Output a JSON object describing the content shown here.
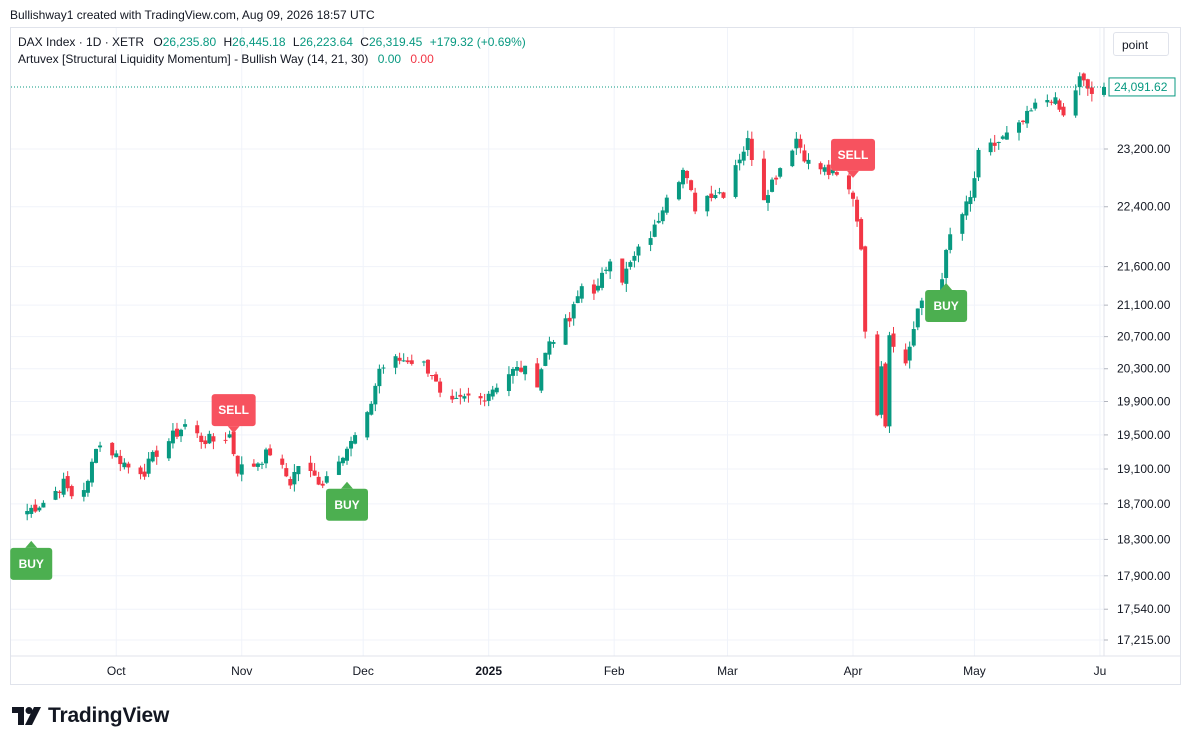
{
  "header": {
    "credit": "Bullishway1 created with TradingView.com, Aug 09, 2026 18:57 UTC"
  },
  "legend": {
    "symbol": "DAX Index · 1D · XETR",
    "o_label": "O",
    "o_value": "26,235.80",
    "h_label": "H",
    "h_value": "26,445.18",
    "l_label": "L",
    "l_value": "26,223.64",
    "c_label": "C",
    "c_value": "26,319.45",
    "change": "+179.32 (+0.69%)",
    "indicator": "Artuvex [Structural Liquidity Momentum] - Bullish Way (14, 21, 30)",
    "ind_val1": "0.00",
    "ind_val2": "0.00"
  },
  "unit_button": "point",
  "footer": {
    "brand": "TradingView"
  },
  "colors": {
    "up": "#089981",
    "down": "#f23645",
    "buy": "#4caf50",
    "sell": "#f7525f",
    "grid": "#f0f3fa"
  },
  "chart_data": {
    "type": "candlestick",
    "price_scale": "log",
    "ylim": [
      16950,
      24900
    ],
    "y_ticks": [
      "17,215.00",
      "17,540.00",
      "17,900.00",
      "18,300.00",
      "18,700.00",
      "19,100.00",
      "19,500.00",
      "19,900.00",
      "20,300.00",
      "20,700.00",
      "21,100.00",
      "21,600.00",
      "22,400.00",
      "23,200.00"
    ],
    "last_price_label": "24,091.62",
    "x_labels": [
      {
        "label": "Oct",
        "date": "2024-10-01"
      },
      {
        "label": "Nov",
        "date": "2024-11-01"
      },
      {
        "label": "Dec",
        "date": "2024-12-01"
      },
      {
        "label": "2025",
        "date": "2025-01-01",
        "bold": true
      },
      {
        "label": "Feb",
        "date": "2025-02-01"
      },
      {
        "label": "Mar",
        "date": "2025-03-01"
      },
      {
        "label": "Apr",
        "date": "2025-04-01"
      },
      {
        "label": "May",
        "date": "2025-05-01"
      },
      {
        "label": "Ju",
        "date": "2025-06-01"
      }
    ],
    "anchors": [
      [
        "2024-09-09",
        18620
      ],
      [
        "2024-09-13",
        18720
      ],
      [
        "2024-09-18",
        18930
      ],
      [
        "2024-09-20",
        18800
      ],
      [
        "2024-09-24",
        18920
      ],
      [
        "2024-09-26",
        19400
      ],
      [
        "2024-09-30",
        19300
      ],
      [
        "2024-10-04",
        19120
      ],
      [
        "2024-10-08",
        19080
      ],
      [
        "2024-10-11",
        19300
      ],
      [
        "2024-10-15",
        19480
      ],
      [
        "2024-10-18",
        19620
      ],
      [
        "2024-10-22",
        19450
      ],
      [
        "2024-10-25",
        19430
      ],
      [
        "2024-10-29",
        19500
      ],
      [
        "2024-10-31",
        19100
      ],
      [
        "2024-11-04",
        19150
      ],
      [
        "2024-11-08",
        19300
      ],
      [
        "2024-11-13",
        18950
      ],
      [
        "2024-11-15",
        19150
      ],
      [
        "2024-11-19",
        19000
      ],
      [
        "2024-11-21",
        18950
      ],
      [
        "2024-11-25",
        19250
      ],
      [
        "2024-11-28",
        19400
      ],
      [
        "2024-12-02",
        19700
      ],
      [
        "2024-12-05",
        20300
      ],
      [
        "2024-12-09",
        20400
      ],
      [
        "2024-12-12",
        20420
      ],
      [
        "2024-12-16",
        20350
      ],
      [
        "2024-12-18",
        20250
      ],
      [
        "2024-12-20",
        19950
      ],
      [
        "2024-12-23",
        19850
      ],
      [
        "2024-12-27",
        19950
      ],
      [
        "2024-12-30",
        19930
      ],
      [
        "2025-01-06",
        20250
      ],
      [
        "2025-01-09",
        20300
      ],
      [
        "2025-01-13",
        20150
      ],
      [
        "2025-01-16",
        20650
      ],
      [
        "2025-01-21",
        20900
      ],
      [
        "2025-01-24",
        21350
      ],
      [
        "2025-01-28",
        21300
      ],
      [
        "2025-01-31",
        21750
      ],
      [
        "2025-02-03",
        21450
      ],
      [
        "2025-02-07",
        21800
      ],
      [
        "2025-02-11",
        22100
      ],
      [
        "2025-02-14",
        22600
      ],
      [
        "2025-02-18",
        22900
      ],
      [
        "2025-02-21",
        22400
      ],
      [
        "2025-02-25",
        22600
      ],
      [
        "2025-02-28",
        22600
      ],
      [
        "2025-03-03",
        23000
      ],
      [
        "2025-03-06",
        23300
      ],
      [
        "2025-03-10",
        22550
      ],
      [
        "2025-03-14",
        22950
      ],
      [
        "2025-03-18",
        23350
      ],
      [
        "2025-03-21",
        23000
      ],
      [
        "2025-03-25",
        22900
      ],
      [
        "2025-03-28",
        22800
      ],
      [
        "2025-04-01",
        22550
      ],
      [
        "2025-04-03",
        21900
      ],
      [
        "2025-04-04",
        20700
      ],
      [
        "2025-04-07",
        19800
      ],
      [
        "2025-04-08",
        20400
      ],
      [
        "2025-04-09",
        19650
      ],
      [
        "2025-04-10",
        20750
      ],
      [
        "2025-04-14",
        20350
      ],
      [
        "2025-04-17",
        21050
      ],
      [
        "2025-04-22",
        21250
      ],
      [
        "2025-04-25",
        22000
      ],
      [
        "2025-04-30",
        22500
      ],
      [
        "2025-05-02",
        23100
      ],
      [
        "2025-05-07",
        23300
      ],
      [
        "2025-05-12",
        23500
      ],
      [
        "2025-05-16",
        23800
      ],
      [
        "2025-05-20",
        23950
      ],
      [
        "2025-05-23",
        23650
      ],
      [
        "2025-05-27",
        24200
      ],
      [
        "2025-05-30",
        24000
      ],
      [
        "2025-06-02",
        24091.62
      ]
    ],
    "signals": [
      {
        "label": "BUY",
        "date": "2024-09-10",
        "side": "buy"
      },
      {
        "label": "SELL",
        "date": "2024-10-30",
        "side": "sell"
      },
      {
        "label": "BUY",
        "date": "2024-11-27",
        "side": "buy"
      },
      {
        "label": "SELL",
        "date": "2025-04-01",
        "side": "sell"
      },
      {
        "label": "BUY",
        "date": "2025-04-24",
        "side": "buy"
      }
    ]
  }
}
